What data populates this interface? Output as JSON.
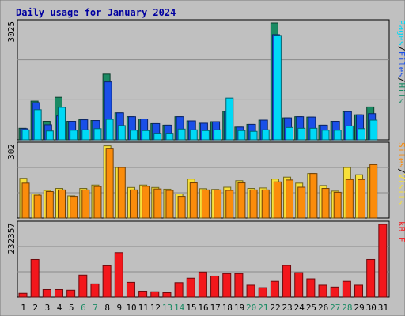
{
  "chart_data": {
    "title": "Daily usage for January 2024",
    "days": [
      "1",
      "2",
      "3",
      "4",
      "5",
      "6",
      "7",
      "8",
      "9",
      "10",
      "11",
      "12",
      "13",
      "14",
      "15",
      "16",
      "17",
      "18",
      "19",
      "20",
      "21",
      "22",
      "23",
      "24",
      "25",
      "26",
      "27",
      "28",
      "29",
      "30",
      "31"
    ],
    "weekend_days": [
      "6",
      "7",
      "13",
      "14",
      "20",
      "21",
      "27",
      "28"
    ],
    "panels": [
      {
        "name": "hits-files-pages",
        "type": "bar",
        "ymax_label": "3025",
        "ymax": 3025,
        "right_labels": [
          "Pages",
          "Files",
          "Hits"
        ],
        "right_separator": "/",
        "series": [
          {
            "name": "Hits",
            "color": "#1a8a63",
            "values": [
              300,
              1000,
              480,
              1100,
              480,
              520,
              500,
              1700,
              700,
              600,
              540,
              420,
              380,
              600,
              490,
              430,
              470,
              740,
              330,
              400,
              510,
              3025,
              570,
              600,
              590,
              380,
              480,
              730,
              650,
              850,
              0
            ]
          },
          {
            "name": "Files",
            "color": "#1a4fe8",
            "values": [
              290,
              960,
              390,
              620,
              480,
              520,
              500,
              1500,
              700,
              600,
              540,
              420,
              380,
              600,
              490,
              430,
              470,
              740,
              330,
              400,
              510,
              2720,
              570,
              600,
              590,
              380,
              480,
              730,
              650,
              680,
              0
            ]
          },
          {
            "name": "Pages",
            "color": "#00d9f6",
            "values": [
              260,
              780,
              230,
              840,
              250,
              260,
              290,
              530,
              370,
              250,
              240,
              170,
              170,
              280,
              260,
              240,
              260,
              1080,
              240,
              220,
              260,
              2700,
              320,
              300,
              300,
              250,
              250,
              360,
              290,
              510,
              0
            ]
          }
        ]
      },
      {
        "name": "visits-sites",
        "type": "bar",
        "ymax_label": "302",
        "ymax": 302,
        "right_labels": [
          "Sites",
          "Visits"
        ],
        "right_separator": "/",
        "series": [
          {
            "name": "Visits",
            "color": "#f7e03a",
            "values": [
              165,
              100,
              115,
              123,
              92,
              123,
              137,
              300,
              210,
              127,
              137,
              127,
              120,
              100,
              162,
              122,
              119,
              128,
              155,
              123,
              125,
              162,
              170,
              145,
              185,
              135,
              112,
              210,
              180,
              208,
              0
            ]
          },
          {
            "name": "Sites",
            "color": "#fb8c0b",
            "values": [
              145,
              95,
              110,
              117,
              90,
              117,
              131,
              290,
              210,
              117,
              132,
              121,
              115,
              90,
              146,
              117,
              117,
              115,
              146,
              117,
              117,
              150,
              158,
              128,
              185,
              123,
              107,
              160,
              160,
              222,
              0
            ]
          }
        ]
      },
      {
        "name": "kbytes",
        "type": "bar",
        "ymax_label": "232357",
        "ymax": 232357,
        "right_labels": [
          "kB",
          "F"
        ],
        "right_separator": "",
        "series": [
          {
            "name": "kB F",
            "color": "#f3171c",
            "values": [
              12000,
              120000,
              24000,
              24000,
              22000,
              70000,
              42000,
              100000,
              142000,
              47000,
              19000,
              17000,
              14000,
              46000,
              60000,
              80000,
              67000,
              75000,
              75000,
              38000,
              30000,
              50000,
              101000,
              78000,
              58000,
              38000,
              32000,
              50000,
              38000,
              120000,
              232357
            ]
          }
        ]
      }
    ]
  }
}
